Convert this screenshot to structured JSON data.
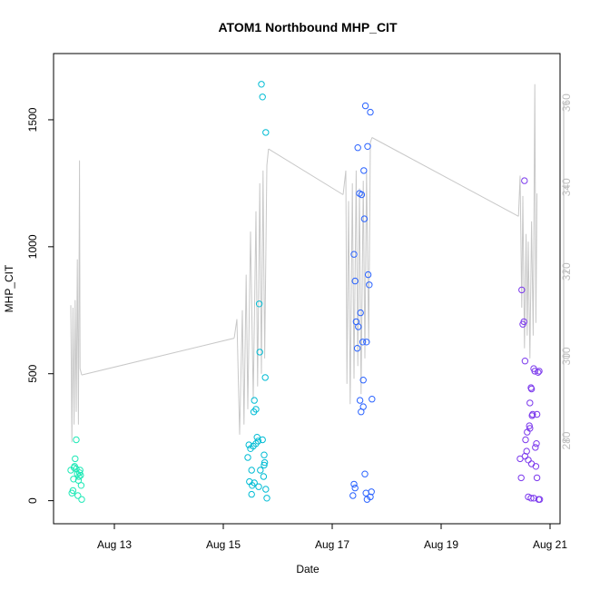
{
  "chart_data": {
    "type": "scatter",
    "title": "ATOM1 Northbound MHP_CIT",
    "xlabel": "Date",
    "ylabel": "MHP_CIT",
    "x_ticks": [
      {
        "label": "Aug 13",
        "day": 13
      },
      {
        "label": "Aug 15",
        "day": 15
      },
      {
        "label": "Aug 17",
        "day": 17
      },
      {
        "label": "Aug 19",
        "day": 19
      },
      {
        "label": "Aug 21",
        "day": 21
      }
    ],
    "xlim_days": [
      12.0,
      21.1
    ],
    "ylim": [
      -30,
      1700
    ],
    "y_ticks": [
      0,
      500,
      1000,
      1500
    ],
    "secondary_axis": {
      "ylim": [
        264,
        368
      ],
      "ticks": [
        280,
        300,
        320,
        340,
        360
      ],
      "color": "#bdbdbd"
    },
    "grid": false,
    "line_color": "#c8c8c8",
    "series": [
      {
        "color": "#1de9b6",
        "points": [
          [
            12.2,
            120
          ],
          [
            12.22,
            30
          ],
          [
            12.24,
            40
          ],
          [
            12.26,
            130
          ],
          [
            12.28,
            165
          ],
          [
            12.3,
            240
          ],
          [
            12.3,
            125
          ],
          [
            12.32,
            105
          ],
          [
            12.33,
            20
          ],
          [
            12.35,
            95
          ],
          [
            12.36,
            110
          ],
          [
            12.37,
            120
          ],
          [
            12.38,
            100
          ],
          [
            12.39,
            60
          ],
          [
            12.4,
            5
          ],
          [
            12.25,
            85
          ],
          [
            12.27,
            135
          ],
          [
            12.34,
            80
          ]
        ]
      },
      {
        "color": "#00bcd4",
        "points": [
          [
            15.45,
            170
          ],
          [
            15.47,
            220
          ],
          [
            15.48,
            75
          ],
          [
            15.5,
            205
          ],
          [
            15.52,
            120
          ],
          [
            15.53,
            60
          ],
          [
            15.55,
            215
          ],
          [
            15.56,
            350
          ],
          [
            15.57,
            395
          ],
          [
            15.6,
            360
          ],
          [
            15.6,
            225
          ],
          [
            15.62,
            250
          ],
          [
            15.64,
            235
          ],
          [
            15.65,
            55
          ],
          [
            15.66,
            775
          ],
          [
            15.67,
            585
          ],
          [
            15.7,
            1640
          ],
          [
            15.72,
            1590
          ],
          [
            15.75,
            180
          ],
          [
            15.77,
            485
          ],
          [
            15.78,
            1450
          ],
          [
            15.8,
            10
          ],
          [
            15.75,
            140
          ],
          [
            15.74,
            95
          ],
          [
            15.52,
            25
          ],
          [
            15.57,
            70
          ],
          [
            15.68,
            120
          ],
          [
            15.72,
            240
          ],
          [
            15.76,
            150
          ],
          [
            15.78,
            45
          ]
        ]
      },
      {
        "color": "#2962ff",
        "points": [
          [
            17.38,
            20
          ],
          [
            17.4,
            65
          ],
          [
            17.42,
            50
          ],
          [
            17.44,
            705
          ],
          [
            17.46,
            600
          ],
          [
            17.47,
            1390
          ],
          [
            17.48,
            685
          ],
          [
            17.5,
            1210
          ],
          [
            17.51,
            395
          ],
          [
            17.52,
            740
          ],
          [
            17.53,
            350
          ],
          [
            17.54,
            1205
          ],
          [
            17.56,
            625
          ],
          [
            17.57,
            475
          ],
          [
            17.57,
            370
          ],
          [
            17.58,
            1300
          ],
          [
            17.59,
            1110
          ],
          [
            17.6,
            105
          ],
          [
            17.61,
            1555
          ],
          [
            17.62,
            30
          ],
          [
            17.63,
            625
          ],
          [
            17.64,
            5
          ],
          [
            17.65,
            1395
          ],
          [
            17.66,
            890
          ],
          [
            17.68,
            850
          ],
          [
            17.7,
            1530
          ],
          [
            17.7,
            15
          ],
          [
            17.72,
            35
          ],
          [
            17.73,
            400
          ],
          [
            17.4,
            970
          ],
          [
            17.42,
            865
          ]
        ]
      },
      {
        "color": "#7c3aed",
        "points": [
          [
            20.45,
            165
          ],
          [
            20.47,
            90
          ],
          [
            20.48,
            830
          ],
          [
            20.5,
            695
          ],
          [
            20.52,
            705
          ],
          [
            20.53,
            1260
          ],
          [
            20.54,
            550
          ],
          [
            20.55,
            240
          ],
          [
            20.57,
            195
          ],
          [
            20.58,
            270
          ],
          [
            20.6,
            160
          ],
          [
            20.62,
            295
          ],
          [
            20.63,
            385
          ],
          [
            20.65,
            445
          ],
          [
            20.66,
            440
          ],
          [
            20.67,
            335
          ],
          [
            20.68,
            340
          ],
          [
            20.7,
            520
          ],
          [
            20.72,
            510
          ],
          [
            20.73,
            210
          ],
          [
            20.74,
            135
          ],
          [
            20.75,
            225
          ],
          [
            20.76,
            340
          ],
          [
            20.78,
            505
          ],
          [
            20.8,
            510
          ],
          [
            20.76,
            90
          ],
          [
            20.6,
            15
          ],
          [
            20.65,
            10
          ],
          [
            20.7,
            10
          ],
          [
            20.79,
            5
          ],
          [
            20.81,
            5
          ],
          [
            20.63,
            285
          ],
          [
            20.66,
            145
          ],
          [
            20.54,
            175
          ]
        ]
      }
    ],
    "line_segments": [
      [
        [
          12.2,
          770
        ],
        [
          12.22,
          230
        ],
        [
          12.24,
          760
        ],
        [
          12.26,
          300
        ],
        [
          12.28,
          790
        ],
        [
          12.3,
          350
        ],
        [
          12.32,
          950
        ],
        [
          12.34,
          300
        ],
        [
          12.36,
          1340
        ],
        [
          12.37,
          520
        ],
        [
          12.4,
          495
        ]
      ],
      [
        [
          12.4,
          495
        ],
        [
          15.2,
          640
        ]
      ],
      [
        [
          15.2,
          640
        ],
        [
          15.25,
          715
        ],
        [
          15.3,
          260
        ],
        [
          15.35,
          750
        ],
        [
          15.38,
          300
        ],
        [
          15.42,
          890
        ],
        [
          15.45,
          360
        ],
        [
          15.5,
          1060
        ],
        [
          15.55,
          400
        ],
        [
          15.6,
          1140
        ],
        [
          15.63,
          450
        ],
        [
          15.67,
          1250
        ],
        [
          15.7,
          500
        ],
        [
          15.73,
          1300
        ],
        [
          15.76,
          560
        ],
        [
          15.8,
          1320
        ],
        [
          15.83,
          1385
        ]
      ],
      [
        [
          15.83,
          1385
        ],
        [
          17.2,
          1205
        ]
      ],
      [
        [
          17.2,
          1205
        ],
        [
          17.25,
          1300
        ],
        [
          17.27,
          460
        ],
        [
          17.3,
          1180
        ],
        [
          17.33,
          380
        ],
        [
          17.37,
          1250
        ],
        [
          17.4,
          480
        ],
        [
          17.44,
          1300
        ],
        [
          17.47,
          530
        ],
        [
          17.5,
          1230
        ],
        [
          17.53,
          420
        ],
        [
          17.57,
          1260
        ],
        [
          17.6,
          560
        ],
        [
          17.63,
          1300
        ],
        [
          17.67,
          620
        ],
        [
          17.7,
          1410
        ],
        [
          17.73,
          1430
        ]
      ],
      [
        [
          17.73,
          1430
        ],
        [
          20.42,
          1120
        ]
      ],
      [
        [
          20.42,
          1120
        ],
        [
          20.45,
          1280
        ],
        [
          20.48,
          760
        ],
        [
          20.5,
          1200
        ],
        [
          20.53,
          600
        ],
        [
          20.56,
          1050
        ],
        [
          20.58,
          650
        ],
        [
          20.6,
          1020
        ],
        [
          20.63,
          560
        ],
        [
          20.66,
          1100
        ],
        [
          20.69,
          650
        ],
        [
          20.72,
          1640
        ],
        [
          20.74,
          700
        ],
        [
          20.76,
          1210
        ]
      ]
    ]
  }
}
